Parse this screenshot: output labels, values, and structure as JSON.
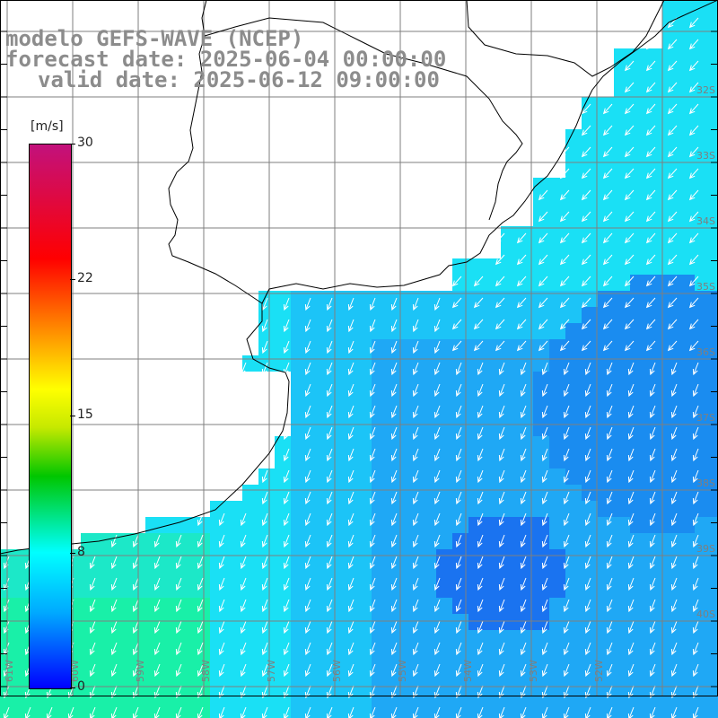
{
  "header": {
    "line1": "modelo GEFS-WAVE (NCEP)",
    "line2": "forecast date: 2025-06-04 00:00:00",
    "line3": "valid date: 2025-06-12 09:00:00"
  },
  "colorbar": {
    "unit": "[m/s]",
    "ticks": [
      "30",
      "22",
      "15",
      "8",
      "0"
    ],
    "colors": [
      "#c2117c",
      "#ff0000",
      "#ff8000",
      "#ffff00",
      "#00c600",
      "#00ffff",
      "#00aaff",
      "#0000ff"
    ]
  },
  "map": {
    "lat_labels": [
      "32S",
      "33S",
      "34S",
      "35S",
      "36S",
      "37S",
      "38S",
      "39S",
      "40S"
    ],
    "lon_labels": [
      "61W",
      "60W",
      "59W",
      "58W",
      "57W",
      "56W",
      "55W",
      "54W",
      "53W",
      "52W"
    ],
    "land_color": "#ffffff",
    "grid_color": "#7f7f7f"
  }
}
